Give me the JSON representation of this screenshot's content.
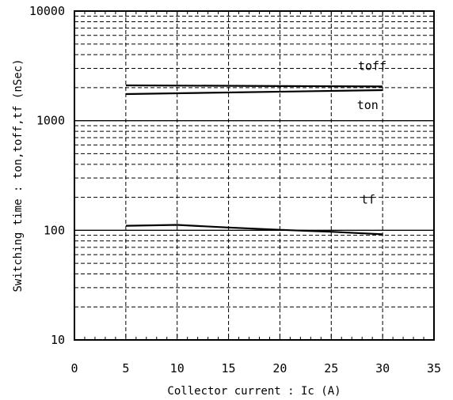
{
  "chart_data": {
    "type": "line",
    "title": "",
    "xlabel": "Collector current : Ic (A)",
    "ylabel": "Switching time : ton,toff,tf (nSec)",
    "xlim": [
      0,
      35
    ],
    "ylim": [
      10,
      10000
    ],
    "yscale": "log",
    "grid": true,
    "x_ticks": [
      "0",
      "5",
      "10",
      "15",
      "20",
      "25",
      "30",
      "35"
    ],
    "y_ticks": [
      "10",
      "100",
      "1000",
      "10000"
    ],
    "series": [
      {
        "name": "toff",
        "x": [
          5,
          30
        ],
        "y": [
          2100,
          2050
        ]
      },
      {
        "name": "ton",
        "x": [
          5,
          30
        ],
        "y": [
          1750,
          1900
        ]
      },
      {
        "name": "tf",
        "x": [
          5,
          10,
          15,
          20,
          25,
          30
        ],
        "y": [
          110,
          112,
          106,
          101,
          97,
          92
        ]
      }
    ]
  }
}
